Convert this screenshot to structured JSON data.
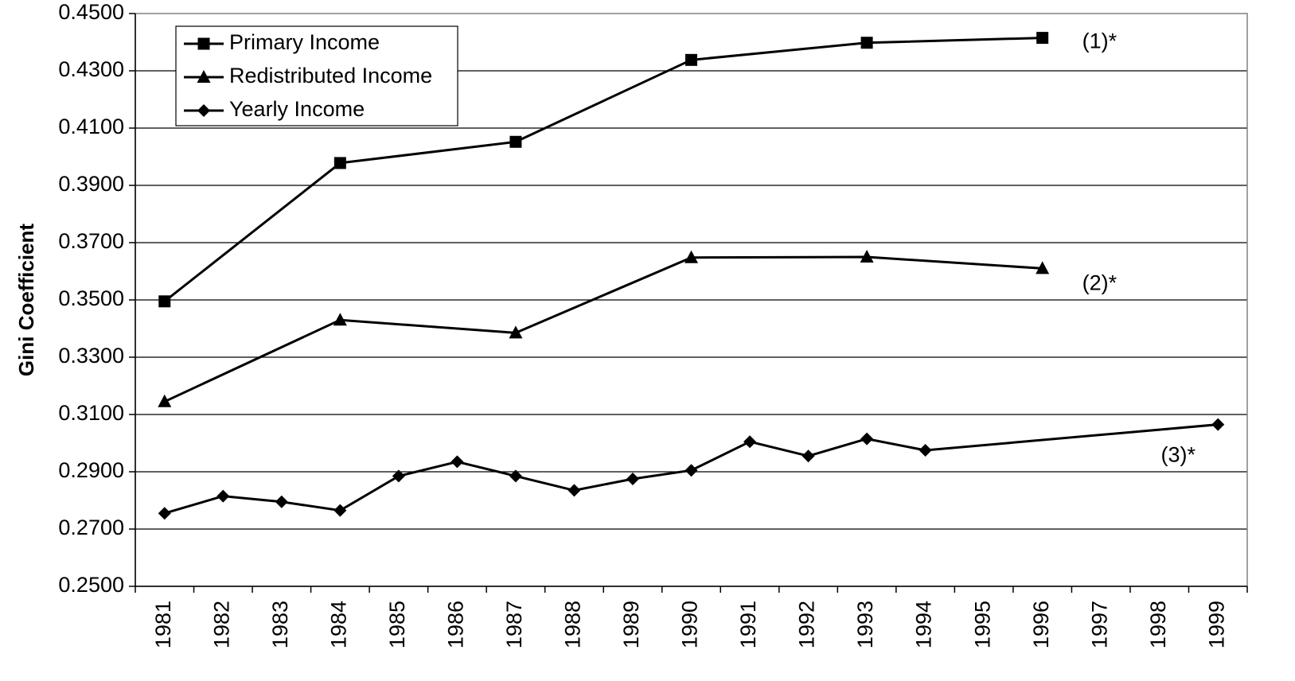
{
  "chart_data": {
    "type": "line",
    "ylabel": "Gini Coefficient",
    "xlabel": "",
    "ylim": [
      0.25,
      0.45
    ],
    "y_ticks": [
      "0.2500",
      "0.2700",
      "0.2900",
      "0.3100",
      "0.3300",
      "0.3500",
      "0.3700",
      "0.3900",
      "0.4100",
      "0.4300",
      "0.4500"
    ],
    "categories": [
      "1981",
      "1982",
      "1983",
      "1984",
      "1985",
      "1986",
      "1987",
      "1988",
      "1989",
      "1990",
      "1991",
      "1992",
      "1993",
      "1994",
      "1995",
      "1996",
      "1997",
      "1998",
      "1999"
    ],
    "grid": "horizontal",
    "legend_position": "top-left",
    "series": [
      {
        "name": "Primary Income",
        "marker": "square",
        "color": "#000000",
        "x": [
          "1981",
          "1984",
          "1987",
          "1990",
          "1993",
          "1996"
        ],
        "values": [
          0.3495,
          0.3978,
          0.4052,
          0.4338,
          0.4398,
          0.4415
        ],
        "annotation": "(1)*"
      },
      {
        "name": "Redistributed Income",
        "marker": "triangle",
        "color": "#000000",
        "x": [
          "1981",
          "1984",
          "1987",
          "1990",
          "1993",
          "1996"
        ],
        "values": [
          0.3145,
          0.343,
          0.3385,
          0.3648,
          0.365,
          0.361
        ],
        "annotation": "(2)*"
      },
      {
        "name": "Yearly Income",
        "marker": "diamond",
        "color": "#000000",
        "x": [
          "1981",
          "1982",
          "1983",
          "1984",
          "1985",
          "1986",
          "1987",
          "1988",
          "1989",
          "1990",
          "1991",
          "1992",
          "1993",
          "1994",
          "1999"
        ],
        "values": [
          0.2755,
          0.2815,
          0.2795,
          0.2765,
          0.2885,
          0.2935,
          0.2885,
          0.2835,
          0.2875,
          0.2905,
          0.3005,
          0.2955,
          0.3015,
          0.2975,
          0.3065
        ],
        "annotation": "(3)*"
      }
    ]
  }
}
